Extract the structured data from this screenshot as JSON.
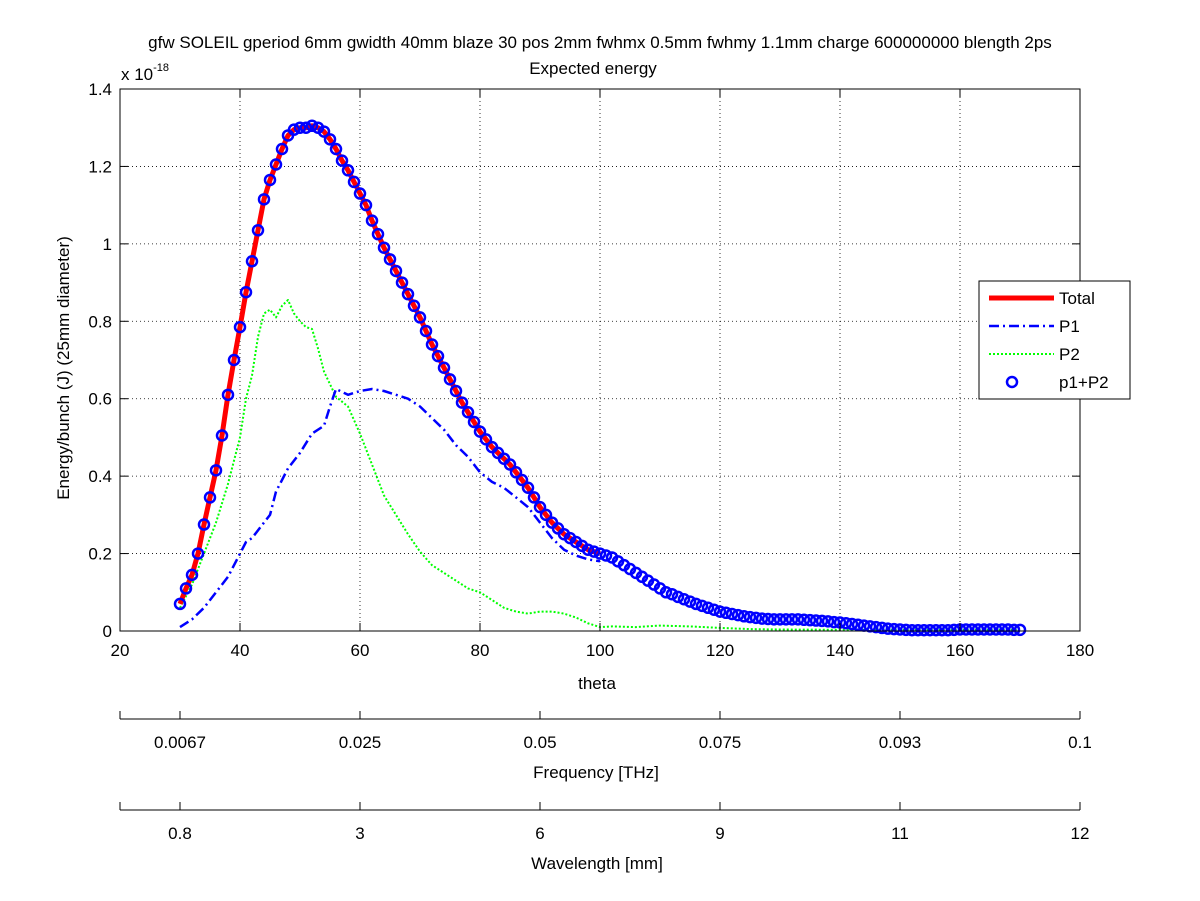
{
  "chart_data": {
    "type": "line",
    "title": "gfw SOLEIL gperiod 6mm gwidth 40mm blaze 30 pos 2mm fwhmx 0.5mm fwhmy 1.1mm charge 600000000 blength 2ps",
    "subtitle": "Expected energy",
    "xlabel": "theta",
    "ylabel": "Energy/bunch (J)  (25mm diameter)",
    "y_multiplier_label": "x 10",
    "y_multiplier_exponent": "-18",
    "xlim": [
      20,
      180
    ],
    "ylim": [
      0,
      1.4
    ],
    "grid": true,
    "legend_position": "right",
    "x_ticks": [
      "20",
      "40",
      "60",
      "80",
      "100",
      "120",
      "140",
      "160",
      "180"
    ],
    "y_ticks": [
      "0",
      "0.2",
      "0.4",
      "0.6",
      "0.8",
      "1",
      "1.2",
      "1.4"
    ],
    "secondary_axes": [
      {
        "label": "Frequency [THz]",
        "tick_positions_theta": [
          30,
          60,
          90,
          120,
          150,
          180
        ],
        "tick_labels": [
          "0.0067",
          "0.025",
          "0.05",
          "0.075",
          "0.093",
          "0.1"
        ]
      },
      {
        "label": "Wavelength [mm]",
        "tick_positions_theta": [
          30,
          60,
          90,
          120,
          150,
          180
        ],
        "tick_labels": [
          "0.8",
          "3",
          "6",
          "9",
          "11",
          "12"
        ]
      }
    ],
    "series": [
      {
        "name": "Total",
        "color": "#ff0000",
        "style": "solid",
        "x": [
          30,
          31,
          32,
          33,
          34,
          35,
          36,
          37,
          38,
          39,
          40,
          41,
          42,
          43,
          44,
          45,
          46,
          47,
          48,
          49,
          50,
          51,
          52,
          53,
          54,
          55,
          56,
          57,
          58,
          59,
          60,
          61,
          62,
          63,
          64,
          65,
          66,
          67,
          68,
          69,
          70,
          71,
          72,
          73,
          74,
          75,
          76,
          77,
          78,
          79,
          80,
          81,
          82,
          83,
          84,
          85,
          86,
          87,
          88,
          89,
          90,
          91,
          92,
          93,
          94,
          95,
          96,
          97,
          98,
          99,
          100
        ],
        "y": [
          0.07,
          0.11,
          0.145,
          0.2,
          0.275,
          0.345,
          0.415,
          0.505,
          0.61,
          0.7,
          0.785,
          0.875,
          0.955,
          1.035,
          1.115,
          1.165,
          1.205,
          1.245,
          1.28,
          1.295,
          1.3,
          1.3,
          1.305,
          1.3,
          1.29,
          1.27,
          1.245,
          1.215,
          1.19,
          1.16,
          1.13,
          1.1,
          1.06,
          1.025,
          0.99,
          0.96,
          0.93,
          0.9,
          0.87,
          0.84,
          0.81,
          0.775,
          0.74,
          0.71,
          0.68,
          0.65,
          0.62,
          0.59,
          0.565,
          0.54,
          0.515,
          0.495,
          0.475,
          0.46,
          0.445,
          0.43,
          0.41,
          0.39,
          0.37,
          0.345,
          0.32,
          0.3,
          0.28,
          0.265,
          0.25,
          0.24,
          0.23,
          0.22,
          0.21,
          0.205,
          0.2
        ]
      },
      {
        "name": "P1",
        "color": "#0000ff",
        "style": "dashdot",
        "x": [
          30,
          32,
          34,
          36,
          38,
          40,
          41,
          42,
          44,
          45,
          46,
          48,
          50,
          52,
          54,
          55,
          56,
          58,
          60,
          62,
          64,
          66,
          68,
          70,
          72,
          74,
          76,
          78,
          80,
          82,
          84,
          86,
          88,
          90,
          92,
          94,
          96,
          98,
          100
        ],
        "y": [
          0.01,
          0.03,
          0.06,
          0.1,
          0.14,
          0.2,
          0.23,
          0.24,
          0.28,
          0.3,
          0.36,
          0.42,
          0.46,
          0.51,
          0.53,
          0.58,
          0.625,
          0.61,
          0.62,
          0.625,
          0.62,
          0.61,
          0.6,
          0.58,
          0.55,
          0.52,
          0.48,
          0.45,
          0.41,
          0.385,
          0.37,
          0.345,
          0.32,
          0.28,
          0.24,
          0.21,
          0.195,
          0.185,
          0.18
        ]
      },
      {
        "name": "P2",
        "color": "#00ff00",
        "style": "dotted",
        "x": [
          30,
          32,
          34,
          36,
          38,
          40,
          41,
          42,
          43,
          44,
          45,
          46,
          47,
          48,
          49,
          50,
          51,
          52,
          53,
          54,
          56,
          58,
          60,
          62,
          64,
          66,
          68,
          70,
          72,
          74,
          76,
          78,
          80,
          82,
          84,
          86,
          88,
          90,
          92,
          94,
          96,
          98,
          100,
          102,
          106,
          110,
          115,
          120,
          125,
          130,
          140,
          150,
          160,
          170
        ],
        "y": [
          0.06,
          0.12,
          0.2,
          0.28,
          0.38,
          0.5,
          0.6,
          0.66,
          0.76,
          0.82,
          0.83,
          0.81,
          0.84,
          0.855,
          0.82,
          0.8,
          0.785,
          0.78,
          0.73,
          0.67,
          0.605,
          0.58,
          0.51,
          0.43,
          0.35,
          0.3,
          0.25,
          0.205,
          0.17,
          0.15,
          0.13,
          0.11,
          0.1,
          0.08,
          0.06,
          0.05,
          0.045,
          0.05,
          0.05,
          0.045,
          0.035,
          0.02,
          0.01,
          0.012,
          0.01,
          0.014,
          0.012,
          0.008,
          0.005,
          0.004,
          0.003,
          0.003,
          0.003,
          0.003
        ]
      },
      {
        "name": "p1+P2",
        "color": "#0000ff",
        "style": "markers",
        "x": [
          30,
          31,
          32,
          33,
          34,
          35,
          36,
          37,
          38,
          39,
          40,
          41,
          42,
          43,
          44,
          45,
          46,
          47,
          48,
          49,
          50,
          51,
          52,
          53,
          54,
          55,
          56,
          57,
          58,
          59,
          60,
          61,
          62,
          63,
          64,
          65,
          66,
          67,
          68,
          69,
          70,
          71,
          72,
          73,
          74,
          75,
          76,
          77,
          78,
          79,
          80,
          81,
          82,
          83,
          84,
          85,
          86,
          87,
          88,
          89,
          90,
          91,
          92,
          93,
          94,
          95,
          96,
          97,
          98,
          99,
          100,
          101,
          102,
          103,
          104,
          105,
          106,
          107,
          108,
          109,
          110,
          111,
          112,
          113,
          114,
          115,
          116,
          117,
          118,
          119,
          120,
          121,
          122,
          123,
          124,
          125,
          126,
          127,
          128,
          129,
          130,
          131,
          132,
          133,
          134,
          135,
          136,
          137,
          138,
          139,
          140,
          141,
          142,
          143,
          144,
          145,
          146,
          147,
          148,
          149,
          150,
          151,
          152,
          153,
          154,
          155,
          156,
          157,
          158,
          159,
          160,
          161,
          162,
          163,
          164,
          165,
          166,
          167,
          168,
          169,
          170
        ],
        "y": [
          0.07,
          0.11,
          0.145,
          0.2,
          0.275,
          0.345,
          0.415,
          0.505,
          0.61,
          0.7,
          0.785,
          0.875,
          0.955,
          1.035,
          1.115,
          1.165,
          1.205,
          1.245,
          1.28,
          1.295,
          1.3,
          1.3,
          1.305,
          1.3,
          1.29,
          1.27,
          1.245,
          1.215,
          1.19,
          1.16,
          1.13,
          1.1,
          1.06,
          1.025,
          0.99,
          0.96,
          0.93,
          0.9,
          0.87,
          0.84,
          0.81,
          0.775,
          0.74,
          0.71,
          0.68,
          0.65,
          0.62,
          0.59,
          0.565,
          0.54,
          0.515,
          0.495,
          0.475,
          0.46,
          0.445,
          0.43,
          0.41,
          0.39,
          0.37,
          0.345,
          0.32,
          0.3,
          0.28,
          0.265,
          0.25,
          0.24,
          0.23,
          0.22,
          0.21,
          0.205,
          0.2,
          0.195,
          0.19,
          0.18,
          0.17,
          0.16,
          0.15,
          0.14,
          0.13,
          0.12,
          0.11,
          0.1,
          0.095,
          0.088,
          0.082,
          0.076,
          0.07,
          0.065,
          0.06,
          0.055,
          0.05,
          0.047,
          0.044,
          0.041,
          0.038,
          0.036,
          0.034,
          0.032,
          0.031,
          0.03,
          0.03,
          0.03,
          0.03,
          0.03,
          0.029,
          0.028,
          0.027,
          0.026,
          0.025,
          0.023,
          0.022,
          0.02,
          0.018,
          0.016,
          0.014,
          0.012,
          0.01,
          0.008,
          0.006,
          0.005,
          0.004,
          0.003,
          0.002,
          0.002,
          0.002,
          0.002,
          0.002,
          0.002,
          0.002,
          0.003,
          0.004,
          0.004,
          0.004,
          0.004,
          0.004,
          0.004,
          0.004,
          0.004,
          0.004,
          0.003,
          0.003
        ]
      }
    ]
  }
}
